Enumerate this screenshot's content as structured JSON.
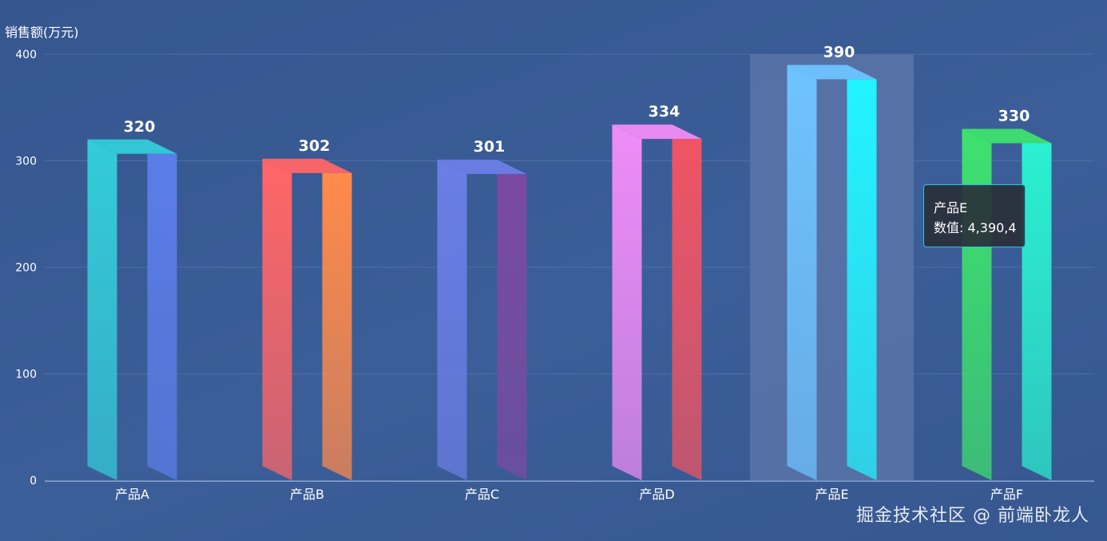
{
  "chart_data": {
    "type": "bar",
    "y_axis_name": "销售额(万元)",
    "categories": [
      "产品A",
      "产品B",
      "产品C",
      "产品D",
      "产品E",
      "产品F"
    ],
    "values": [
      320,
      302,
      301,
      334,
      390,
      330
    ],
    "ylim": [
      0,
      400
    ],
    "y_ticks": [
      0,
      100,
      200,
      300,
      400
    ],
    "grid": true,
    "highlighted_category": "产品E",
    "bar_colors": [
      [
        "#33ccd9",
        "#5b7de8"
      ],
      [
        "#ff6666",
        "#ff8a4a"
      ],
      [
        "#6a7ee6",
        "#7a4aa0"
      ],
      [
        "#ef8cf7",
        "#f05464"
      ],
      [
        "#6ec3ff",
        "#22f4ff"
      ],
      [
        "#3de26e",
        "#2af0d0"
      ]
    ]
  },
  "tooltip": {
    "title": "产品E",
    "label": "数值",
    "value_text": "4,390,4"
  },
  "watermark": "掘金技术社区 @ 前端卧龙人",
  "colors": {
    "background": "#3a5b94",
    "grid": "#4f6ea6",
    "axis": "#8aa6d6",
    "highlight": "#5a74a8",
    "tooltip_border": "#28c6d8"
  }
}
